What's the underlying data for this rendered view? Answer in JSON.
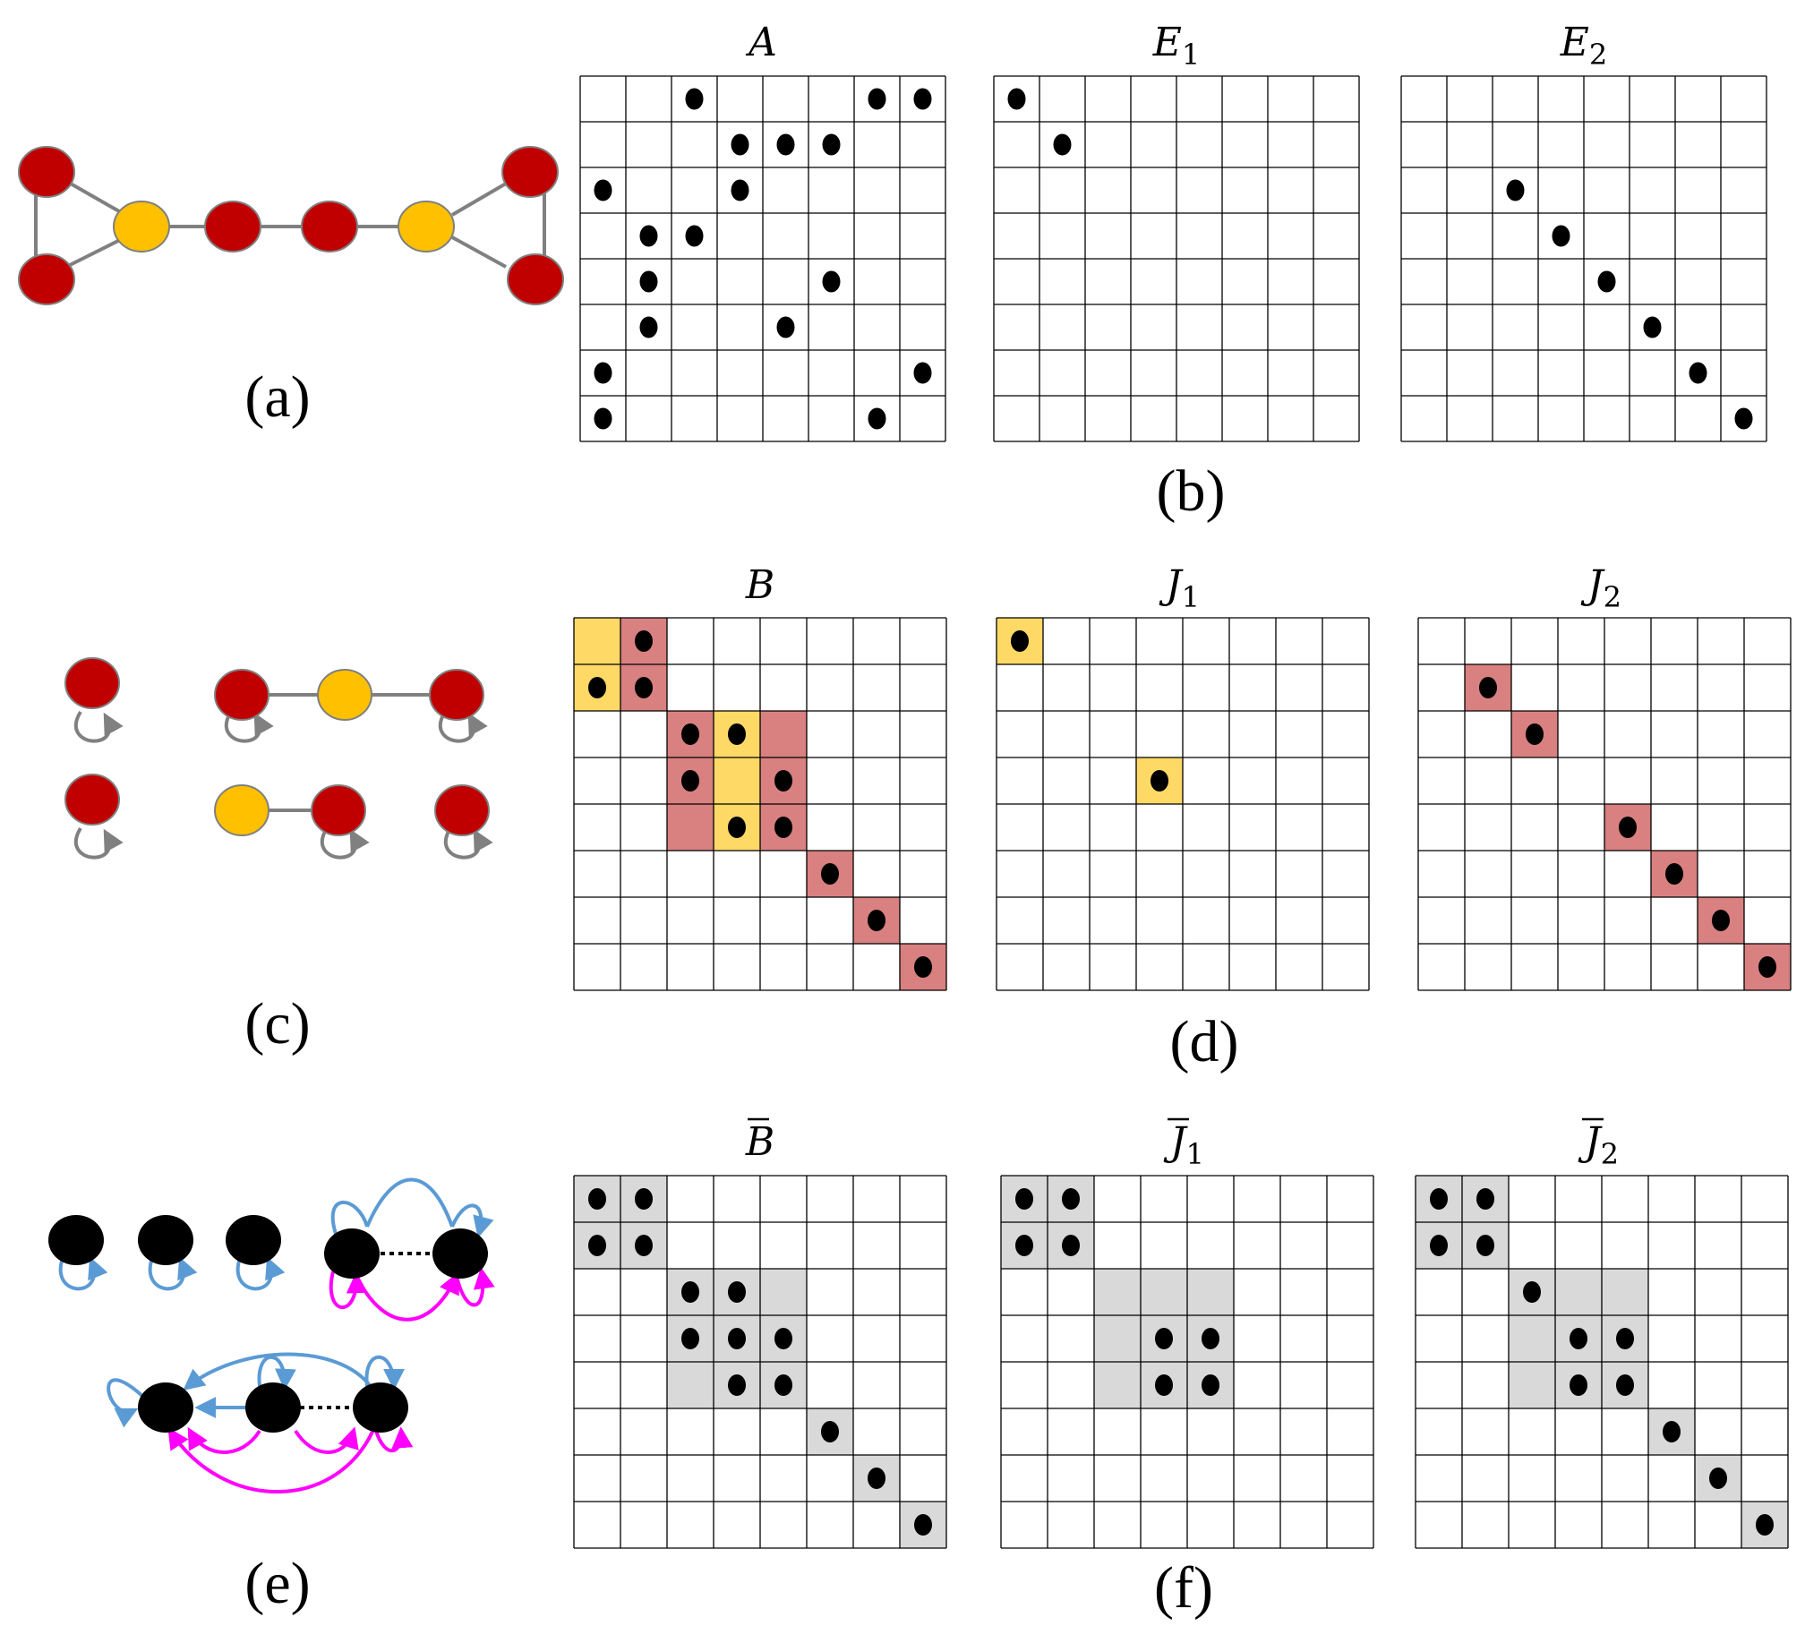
{
  "colors": {
    "red_node": "#C00000",
    "yellow_node": "#FFC000",
    "black_node": "#000000",
    "edge_gray": "#808080",
    "loop_blue": "#5B9BD5",
    "loop_magenta": "#FF00FF",
    "cell_yellow": "#FFD966",
    "cell_red": "#D98080",
    "cell_gray": "#D9D9D9",
    "grid_line": "#000000",
    "dot": "#000000"
  },
  "panel_labels": {
    "a": "(a)",
    "b": "(b)",
    "c": "(c)",
    "d": "(d)",
    "e": "(e)",
    "f": "(f)"
  },
  "matrices": [
    {
      "id": "A",
      "title": "A",
      "sub": "",
      "bar": false,
      "dots": [
        [
          0,
          2
        ],
        [
          0,
          6
        ],
        [
          0,
          7
        ],
        [
          1,
          3
        ],
        [
          1,
          4
        ],
        [
          1,
          5
        ],
        [
          2,
          0
        ],
        [
          2,
          3
        ],
        [
          3,
          1
        ],
        [
          3,
          2
        ],
        [
          4,
          1
        ],
        [
          4,
          5
        ],
        [
          5,
          1
        ],
        [
          5,
          4
        ],
        [
          6,
          0
        ],
        [
          6,
          7
        ],
        [
          7,
          0
        ],
        [
          7,
          6
        ]
      ],
      "cells": []
    },
    {
      "id": "E1",
      "title": "E",
      "sub": "1",
      "bar": false,
      "dots": [
        [
          0,
          0
        ],
        [
          1,
          1
        ]
      ],
      "cells": []
    },
    {
      "id": "E2",
      "title": "E",
      "sub": "2",
      "bar": false,
      "dots": [
        [
          2,
          2
        ],
        [
          3,
          3
        ],
        [
          4,
          4
        ],
        [
          5,
          5
        ],
        [
          6,
          6
        ],
        [
          7,
          7
        ]
      ],
      "cells": []
    },
    {
      "id": "B",
      "title": "B",
      "sub": "",
      "bar": false,
      "dots": [
        [
          0,
          1
        ],
        [
          1,
          0
        ],
        [
          1,
          1
        ],
        [
          2,
          2
        ],
        [
          2,
          3
        ],
        [
          3,
          2
        ],
        [
          3,
          4
        ],
        [
          4,
          3
        ],
        [
          4,
          4
        ],
        [
          5,
          5
        ],
        [
          6,
          6
        ],
        [
          7,
          7
        ]
      ],
      "cells": [
        {
          "r": 0,
          "c": 0,
          "fill": "yellow"
        },
        {
          "r": 1,
          "c": 0,
          "fill": "yellow"
        },
        {
          "r": 0,
          "c": 1,
          "fill": "red"
        },
        {
          "r": 1,
          "c": 1,
          "fill": "red"
        },
        {
          "r": 2,
          "c": 2,
          "fill": "red"
        },
        {
          "r": 3,
          "c": 2,
          "fill": "red"
        },
        {
          "r": 4,
          "c": 2,
          "fill": "red"
        },
        {
          "r": 2,
          "c": 3,
          "fill": "yellow"
        },
        {
          "r": 3,
          "c": 3,
          "fill": "yellow"
        },
        {
          "r": 4,
          "c": 3,
          "fill": "yellow"
        },
        {
          "r": 2,
          "c": 4,
          "fill": "red"
        },
        {
          "r": 3,
          "c": 4,
          "fill": "red"
        },
        {
          "r": 4,
          "c": 4,
          "fill": "red"
        },
        {
          "r": 5,
          "c": 5,
          "fill": "red"
        },
        {
          "r": 6,
          "c": 6,
          "fill": "red"
        },
        {
          "r": 7,
          "c": 7,
          "fill": "red"
        }
      ]
    },
    {
      "id": "J1",
      "title": "J",
      "sub": "1",
      "bar": false,
      "dots": [
        [
          0,
          0
        ],
        [
          3,
          3
        ]
      ],
      "cells": [
        {
          "r": 0,
          "c": 0,
          "fill": "yellow"
        },
        {
          "r": 3,
          "c": 3,
          "fill": "yellow"
        }
      ]
    },
    {
      "id": "J2",
      "title": "J",
      "sub": "2",
      "bar": false,
      "dots": [
        [
          1,
          1
        ],
        [
          2,
          2
        ],
        [
          4,
          4
        ],
        [
          5,
          5
        ],
        [
          6,
          6
        ],
        [
          7,
          7
        ]
      ],
      "cells": [
        {
          "r": 1,
          "c": 1,
          "fill": "red"
        },
        {
          "r": 2,
          "c": 2,
          "fill": "red"
        },
        {
          "r": 4,
          "c": 4,
          "fill": "red"
        },
        {
          "r": 5,
          "c": 5,
          "fill": "red"
        },
        {
          "r": 6,
          "c": 6,
          "fill": "red"
        },
        {
          "r": 7,
          "c": 7,
          "fill": "red"
        }
      ]
    },
    {
      "id": "Bbar",
      "title": "B",
      "sub": "",
      "bar": true,
      "dots": [
        [
          0,
          0
        ],
        [
          0,
          1
        ],
        [
          1,
          0
        ],
        [
          1,
          1
        ],
        [
          2,
          2
        ],
        [
          2,
          3
        ],
        [
          3,
          2
        ],
        [
          3,
          3
        ],
        [
          3,
          4
        ],
        [
          4,
          3
        ],
        [
          4,
          4
        ],
        [
          5,
          5
        ],
        [
          6,
          6
        ],
        [
          7,
          7
        ]
      ],
      "cells": [
        {
          "r": 0,
          "c": 0,
          "fill": "gray"
        },
        {
          "r": 0,
          "c": 1,
          "fill": "gray"
        },
        {
          "r": 1,
          "c": 0,
          "fill": "gray"
        },
        {
          "r": 1,
          "c": 1,
          "fill": "gray"
        },
        {
          "r": 2,
          "c": 2,
          "fill": "gray"
        },
        {
          "r": 2,
          "c": 3,
          "fill": "gray"
        },
        {
          "r": 2,
          "c": 4,
          "fill": "gray"
        },
        {
          "r": 3,
          "c": 2,
          "fill": "gray"
        },
        {
          "r": 3,
          "c": 3,
          "fill": "gray"
        },
        {
          "r": 3,
          "c": 4,
          "fill": "gray"
        },
        {
          "r": 4,
          "c": 2,
          "fill": "gray"
        },
        {
          "r": 4,
          "c": 3,
          "fill": "gray"
        },
        {
          "r": 4,
          "c": 4,
          "fill": "gray"
        },
        {
          "r": 5,
          "c": 5,
          "fill": "gray"
        },
        {
          "r": 6,
          "c": 6,
          "fill": "gray"
        },
        {
          "r": 7,
          "c": 7,
          "fill": "gray"
        }
      ]
    },
    {
      "id": "J1bar",
      "title": "J",
      "sub": "1",
      "bar": true,
      "dots": [
        [
          0,
          0
        ],
        [
          0,
          1
        ],
        [
          1,
          0
        ],
        [
          1,
          1
        ],
        [
          3,
          3
        ],
        [
          3,
          4
        ],
        [
          4,
          3
        ],
        [
          4,
          4
        ]
      ],
      "cells": [
        {
          "r": 0,
          "c": 0,
          "fill": "gray"
        },
        {
          "r": 0,
          "c": 1,
          "fill": "gray"
        },
        {
          "r": 1,
          "c": 0,
          "fill": "gray"
        },
        {
          "r": 1,
          "c": 1,
          "fill": "gray"
        },
        {
          "r": 2,
          "c": 2,
          "fill": "gray"
        },
        {
          "r": 2,
          "c": 3,
          "fill": "gray"
        },
        {
          "r": 2,
          "c": 4,
          "fill": "gray"
        },
        {
          "r": 3,
          "c": 2,
          "fill": "gray"
        },
        {
          "r": 3,
          "c": 3,
          "fill": "gray"
        },
        {
          "r": 3,
          "c": 4,
          "fill": "gray"
        },
        {
          "r": 4,
          "c": 2,
          "fill": "gray"
        },
        {
          "r": 4,
          "c": 3,
          "fill": "gray"
        },
        {
          "r": 4,
          "c": 4,
          "fill": "gray"
        }
      ]
    },
    {
      "id": "J2bar",
      "title": "J",
      "sub": "2",
      "bar": true,
      "dots": [
        [
          0,
          0
        ],
        [
          0,
          1
        ],
        [
          1,
          0
        ],
        [
          1,
          1
        ],
        [
          2,
          2
        ],
        [
          3,
          3
        ],
        [
          3,
          4
        ],
        [
          4,
          3
        ],
        [
          4,
          4
        ],
        [
          5,
          5
        ],
        [
          6,
          6
        ],
        [
          7,
          7
        ]
      ],
      "cells": [
        {
          "r": 0,
          "c": 0,
          "fill": "gray"
        },
        {
          "r": 0,
          "c": 1,
          "fill": "gray"
        },
        {
          "r": 1,
          "c": 0,
          "fill": "gray"
        },
        {
          "r": 1,
          "c": 1,
          "fill": "gray"
        },
        {
          "r": 2,
          "c": 2,
          "fill": "gray"
        },
        {
          "r": 2,
          "c": 3,
          "fill": "gray"
        },
        {
          "r": 2,
          "c": 4,
          "fill": "gray"
        },
        {
          "r": 3,
          "c": 2,
          "fill": "gray"
        },
        {
          "r": 3,
          "c": 3,
          "fill": "gray"
        },
        {
          "r": 3,
          "c": 4,
          "fill": "gray"
        },
        {
          "r": 4,
          "c": 2,
          "fill": "gray"
        },
        {
          "r": 4,
          "c": 3,
          "fill": "gray"
        },
        {
          "r": 4,
          "c": 4,
          "fill": "gray"
        },
        {
          "r": 5,
          "c": 5,
          "fill": "gray"
        },
        {
          "r": 6,
          "c": 6,
          "fill": "gray"
        },
        {
          "r": 7,
          "c": 7,
          "fill": "gray"
        }
      ]
    }
  ]
}
